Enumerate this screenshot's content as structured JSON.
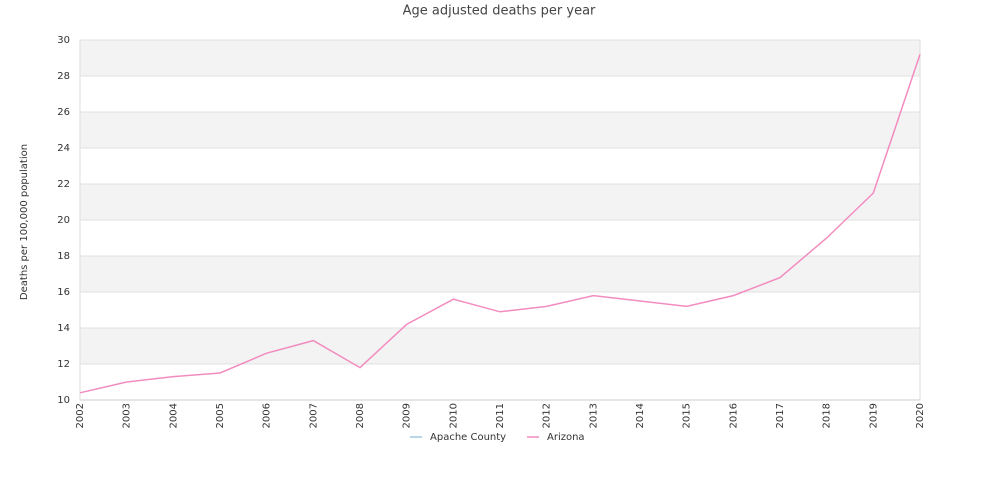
{
  "chart_data": {
    "type": "line",
    "title": "Age adjusted deaths per year",
    "y_label": "Deaths per 100,000 population",
    "categories": [
      "2002",
      "2003",
      "2004",
      "2005",
      "2006",
      "2007",
      "2008",
      "2009",
      "2010",
      "2011",
      "2012",
      "2013",
      "2014",
      "2015",
      "2016",
      "2017",
      "2018",
      "2019",
      "2020"
    ],
    "series": [
      {
        "name": "Apache County",
        "color": "#9ecae1",
        "values": [
          null,
          null,
          null,
          null,
          null,
          null,
          null,
          null,
          null,
          null,
          null,
          null,
          null,
          null,
          null,
          null,
          null,
          null,
          null
        ]
      },
      {
        "name": "Arizona",
        "color": "#f28cbf",
        "values": [
          10.4,
          11.0,
          11.3,
          11.5,
          12.6,
          13.3,
          11.8,
          14.2,
          15.6,
          14.9,
          15.2,
          15.8,
          15.5,
          15.2,
          15.8,
          16.8,
          19.0,
          21.5,
          29.2
        ]
      }
    ],
    "ylim": [
      10,
      30
    ],
    "yticks": [
      10,
      12,
      14,
      16,
      18,
      20,
      22,
      24,
      26,
      28,
      30
    ],
    "grid": true,
    "legend": "bottom"
  }
}
